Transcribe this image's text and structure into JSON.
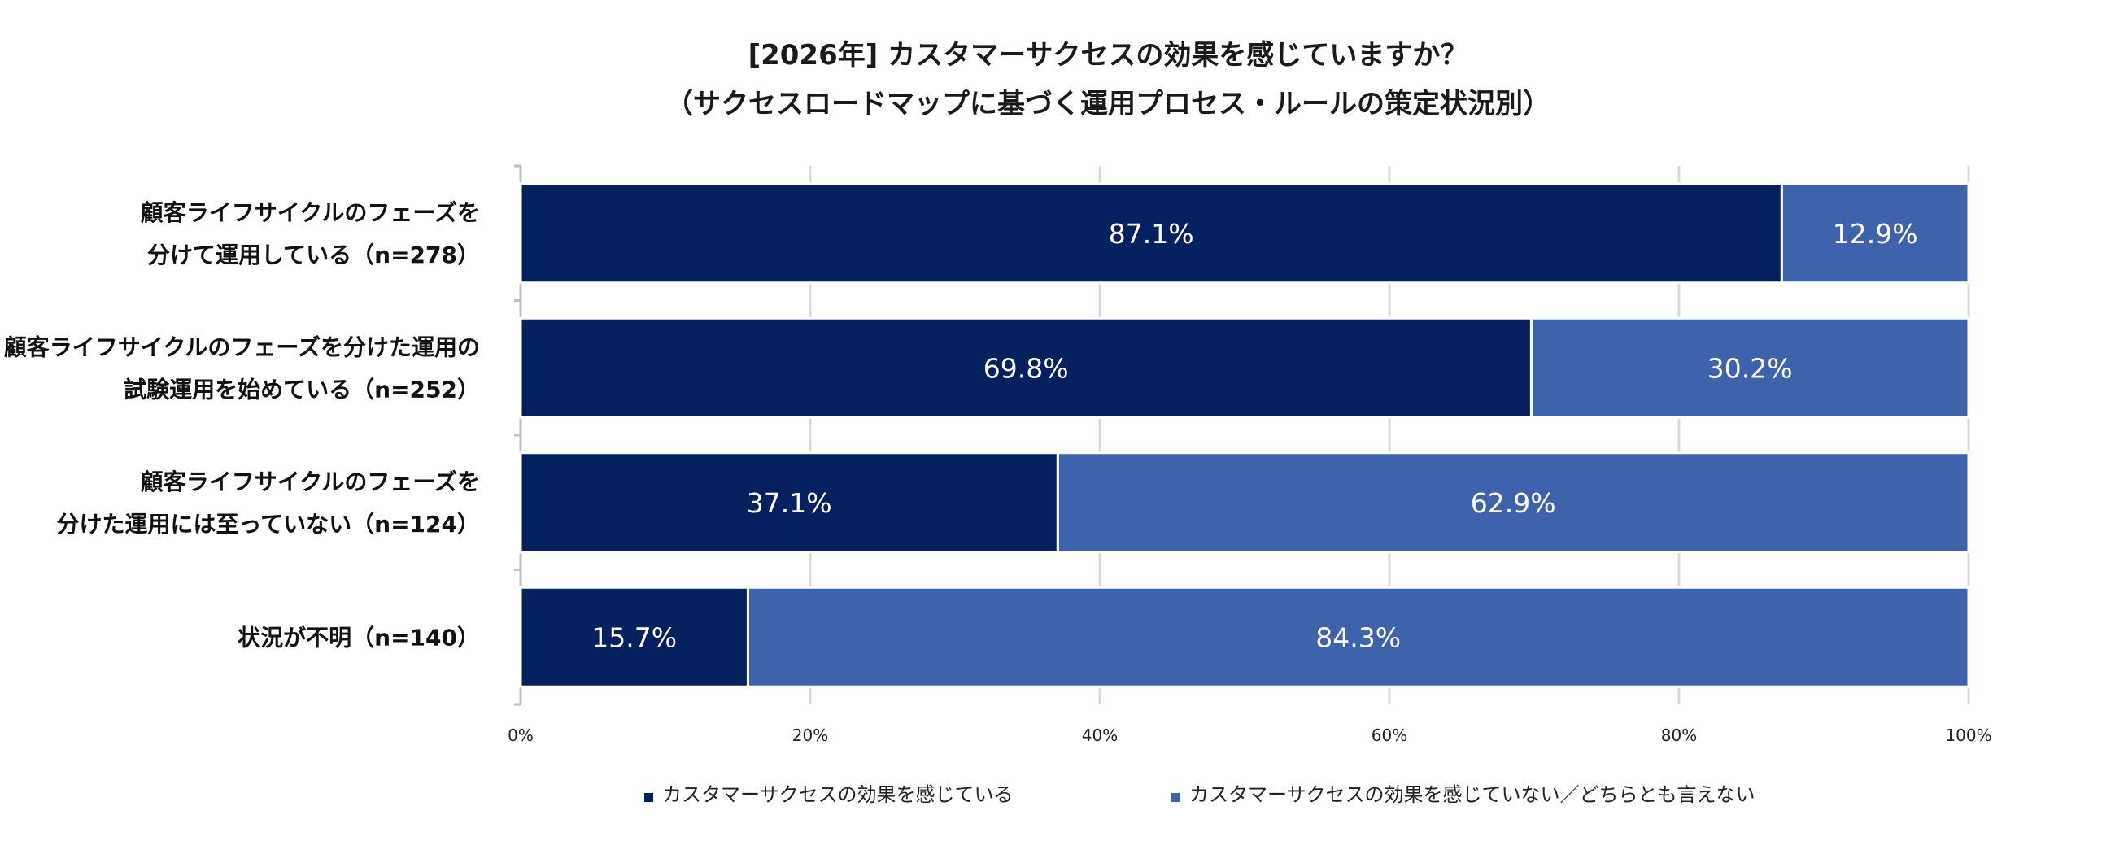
{
  "chart_data": {
    "type": "bar",
    "orientation": "horizontal",
    "stacked": true,
    "title_lines": [
      "[2026年] カスタマーサクセスの効果を感じていますか？",
      "（サクセスロードマップに基づく運用プロセス・ルールの策定状況別）"
    ],
    "categories": [
      [
        "顧客ライフサイクルのフェーズを",
        "分けて運用している（n=278）"
      ],
      [
        "顧客ライフサイクルのフェーズを分けた運用の",
        "試験運用を始めている（n=252）"
      ],
      [
        "顧客ライフサイクルのフェーズを",
        "分けた運用には至っていない（n=124）"
      ],
      [
        "状況が不明（n=140）"
      ]
    ],
    "series": [
      {
        "name": "カスタマーサクセスの効果を感じている",
        "color": "#03205f",
        "values": [
          87.1,
          69.8,
          37.1,
          15.7
        ],
        "labels": [
          "87.1%",
          "69.8%",
          "37.1%",
          "15.7%"
        ]
      },
      {
        "name": "カスタマーサクセスの効果を感じていない／どちらとも言えない",
        "color": "#3d63ad",
        "values": [
          12.9,
          30.2,
          62.9,
          84.3
        ],
        "labels": [
          "12.9%",
          "30.2%",
          "62.9%",
          "84.3%"
        ]
      }
    ],
    "xlim": [
      0,
      100
    ],
    "xticks": [
      "0%",
      "20%",
      "40%",
      "60%",
      "80%",
      "100%"
    ],
    "grid": true,
    "legend_position": "bottom"
  }
}
